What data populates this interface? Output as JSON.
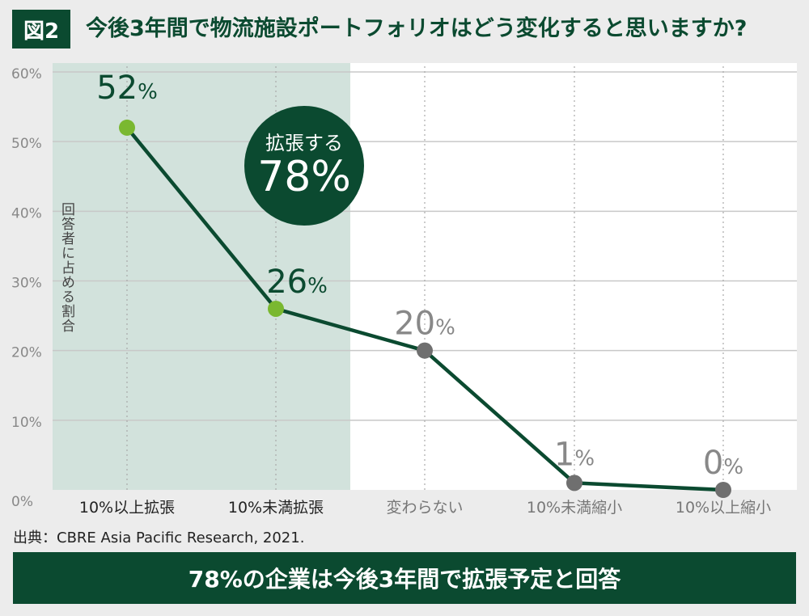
{
  "header": {
    "figure_label": "図2",
    "question": "今後3年間で物流施設ポートフォリオはどう変化すると思いますか?"
  },
  "chart_data": {
    "type": "line",
    "categories": [
      "10%以上拡張",
      "10%未満拡張",
      "変わらない",
      "10%未満縮小",
      "10%以上縮小"
    ],
    "values": [
      52,
      26,
      20,
      1,
      0
    ],
    "value_labels": [
      "52%",
      "26%",
      "20%",
      "1%",
      "0%"
    ],
    "ylim": [
      0,
      60
    ],
    "yticks": [
      0,
      10,
      20,
      30,
      40,
      50,
      60
    ],
    "ytick_labels": [
      "0%",
      "10%",
      "20%",
      "30%",
      "40%",
      "50%",
      "60%"
    ],
    "ylabel": "回答者に占める割合",
    "highlight_categories": [
      "10%以上拡張",
      "10%未満拡張"
    ],
    "grid": true,
    "colors": {
      "line": "#0b4a30",
      "expand_marker": "#7ab830",
      "other_marker": "#6f6f6f",
      "expand_label": "#0b4a30",
      "other_label": "#888888",
      "highlight_band": "#d2e2dc",
      "plot_bg": "#ffffff",
      "gridline": "#c8c8c8"
    }
  },
  "callout": {
    "line1": "拡張する",
    "line2": "78%"
  },
  "source": "出典：CBRE Asia Pacific Research, 2021.",
  "banner": "78%の企業は今後3年間で拡張予定と回答"
}
